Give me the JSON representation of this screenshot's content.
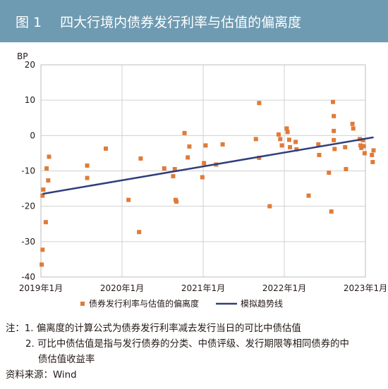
{
  "header": {
    "figure_label": "图 1",
    "title": "四大行境内债券发行利率与估值的偏离度"
  },
  "colors": {
    "header_bg": "#6e9bb2",
    "scatter": "#e07b39",
    "trend": "#2e3f7c",
    "grid": "#d0d0d0"
  },
  "chart_data": {
    "type": "scatter",
    "title": "四大行境内债券发行利率与估值的偏离度",
    "ylabel": "BP",
    "ylim": [
      -40,
      20
    ],
    "yticks": [
      20,
      10,
      0,
      -10,
      -20,
      -30,
      -40
    ],
    "xticks": [
      "2019年1月",
      "2020年1月",
      "2021年1月",
      "2022年1月",
      "2023年1月"
    ],
    "xlim": [
      2019.0,
      2023.0
    ],
    "grid": true,
    "legend_position": "bottom",
    "series": [
      {
        "name": "债券发行利率与估值的偏离度",
        "kind": "scatter",
        "points": [
          [
            2019.01,
            -36.5
          ],
          [
            2019.02,
            -32.3
          ],
          [
            2019.02,
            -17.0
          ],
          [
            2019.03,
            -15.3
          ],
          [
            2019.06,
            -24.5
          ],
          [
            2019.07,
            -9.3
          ],
          [
            2019.09,
            -12.7
          ],
          [
            2019.1,
            -6.0
          ],
          [
            2019.57,
            -12.0
          ],
          [
            2019.57,
            -8.5
          ],
          [
            2019.8,
            -3.7
          ],
          [
            2020.08,
            -18.2
          ],
          [
            2020.21,
            -27.3
          ],
          [
            2020.23,
            -6.5
          ],
          [
            2020.52,
            -9.3
          ],
          [
            2020.63,
            -11.5
          ],
          [
            2020.65,
            -9.5
          ],
          [
            2020.66,
            -18.2
          ],
          [
            2020.67,
            -18.7
          ],
          [
            2020.77,
            0.7
          ],
          [
            2020.81,
            -6.2
          ],
          [
            2020.83,
            -3.1
          ],
          [
            2020.99,
            -11.8
          ],
          [
            2021.01,
            -7.8
          ],
          [
            2021.03,
            -2.8
          ],
          [
            2021.16,
            -8.2
          ],
          [
            2021.24,
            -2.5
          ],
          [
            2021.65,
            -1.0
          ],
          [
            2021.69,
            9.2
          ],
          [
            2021.69,
            -6.3
          ],
          [
            2021.82,
            -20.0
          ],
          [
            2021.93,
            0.3
          ],
          [
            2021.95,
            -1.0
          ],
          [
            2021.97,
            -2.8
          ],
          [
            2022.03,
            2.0
          ],
          [
            2022.04,
            1.0
          ],
          [
            2022.06,
            -1.2
          ],
          [
            2022.07,
            -3.3
          ],
          [
            2022.14,
            -1.8
          ],
          [
            2022.15,
            -3.9
          ],
          [
            2022.3,
            -17.0
          ],
          [
            2022.42,
            -2.5
          ],
          [
            2022.43,
            -5.5
          ],
          [
            2022.55,
            -10.5
          ],
          [
            2022.58,
            -21.5
          ],
          [
            2022.6,
            9.5
          ],
          [
            2022.61,
            5.5
          ],
          [
            2022.61,
            1.3
          ],
          [
            2022.61,
            -1.3
          ],
          [
            2022.62,
            -3.8
          ],
          [
            2022.75,
            -3.3
          ],
          [
            2022.76,
            -9.5
          ],
          [
            2022.84,
            3.3
          ],
          [
            2022.85,
            2.0
          ],
          [
            2022.93,
            -1.0
          ],
          [
            2022.94,
            -2.8
          ],
          [
            2022.95,
            -3.5
          ],
          [
            2022.97,
            -1.3
          ],
          [
            2022.98,
            -3.0
          ],
          [
            2022.99,
            -5.0
          ],
          [
            2023.08,
            -5.5
          ],
          [
            2023.09,
            -7.5
          ],
          [
            2023.1,
            -4.2
          ]
        ]
      },
      {
        "name": "模拟趋势线",
        "kind": "line",
        "points": [
          [
            2019.02,
            -16.5
          ],
          [
            2023.1,
            -0.5
          ]
        ]
      }
    ]
  },
  "notes": {
    "line1": "注：1. 偏离度的计算公式为债券发行利率减去发行当日的可比中债估值",
    "line2": "2. 可比中债估值是指与发行债券的分类、中债评级、发行期限等相同债券的中",
    "line3": "债估值收益率",
    "line4": "资料来源：Wind"
  }
}
